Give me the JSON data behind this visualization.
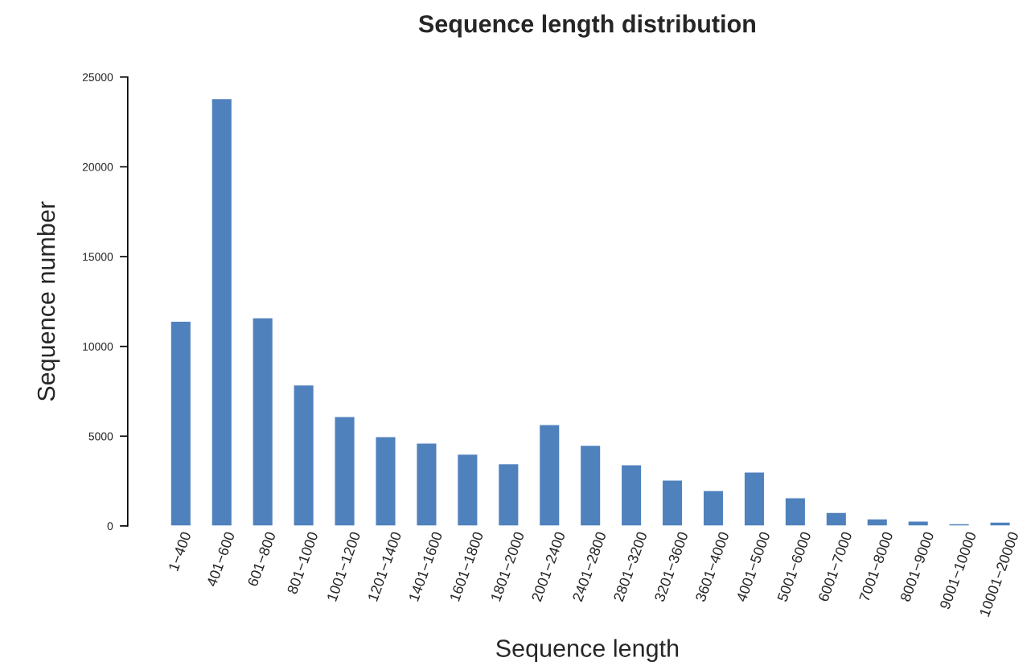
{
  "chart_data": {
    "type": "bar",
    "title": "Sequence length distribution",
    "xlabel": "Sequence length",
    "ylabel": "Sequence number",
    "categories": [
      "1−400",
      "401−600",
      "601−800",
      "801−1000",
      "1001−1200",
      "1201−1400",
      "1401−1600",
      "1601−1800",
      "1801−2000",
      "2001−2400",
      "2401−2800",
      "2801−3200",
      "3201−3600",
      "3601−4000",
      "4001−5000",
      "5001−6000",
      "6001−7000",
      "7001−8000",
      "8001−9000",
      "9001−10000",
      "10001−20000"
    ],
    "values": [
      11400,
      23800,
      11600,
      7850,
      6100,
      4980,
      4620,
      4000,
      3460,
      5650,
      4490,
      3410,
      2560,
      1970,
      3010,
      1570,
      760,
      400,
      270,
      130,
      220
    ],
    "color": "#4f81bd",
    "ylim": [
      0,
      25000
    ],
    "yticks": [
      0,
      5000,
      10000,
      15000,
      20000,
      25000
    ],
    "grid": false,
    "legend": false
  }
}
